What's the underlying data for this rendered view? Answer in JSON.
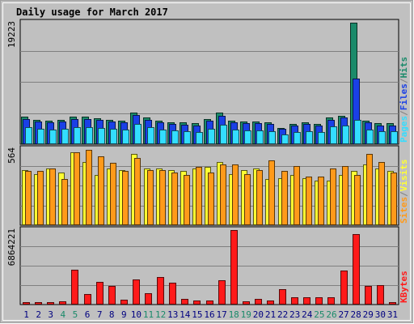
{
  "colors": {
    "frame_bg": "#c0c0c0",
    "plot_bg": "#c0c0c0",
    "title": "#0000cc",
    "gridline": "#808080",
    "hits": "#1a8a6a",
    "files": "#1a40e6",
    "pages": "#33ddff",
    "visits": "#ffff33",
    "sites": "#ff9a1a",
    "kbytes": "#ff1a1a",
    "weekend_label": "#1a8a6a",
    "weekday_label": "#000080"
  },
  "chart_data": {
    "type": "bar",
    "title": "Daily usage for March 2017",
    "days": [
      "1",
      "2",
      "3",
      "4",
      "5",
      "6",
      "7",
      "8",
      "9",
      "10",
      "11",
      "12",
      "13",
      "14",
      "15",
      "16",
      "17",
      "18",
      "19",
      "20",
      "21",
      "22",
      "23",
      "24",
      "25",
      "26",
      "27",
      "28",
      "29",
      "30",
      "31"
    ],
    "weekend_days": [
      "4",
      "5",
      "11",
      "12",
      "18",
      "19",
      "25",
      "26"
    ],
    "panels": [
      {
        "id": "hits-files-pages",
        "max_label": "19223",
        "ymax": 19223,
        "legend": [
          {
            "text": "Pages",
            "color_key": "pages"
          },
          {
            "text": "/",
            "color_key": "gridline"
          },
          {
            "text": "Files",
            "color_key": "files"
          },
          {
            "text": "/",
            "color_key": "gridline"
          },
          {
            "text": "Hits",
            "color_key": "hits"
          }
        ],
        "series": [
          {
            "name": "Hits",
            "color_key": "hits",
            "values": [
              4300,
              3900,
              3700,
              3900,
              4300,
              4300,
              4100,
              3900,
              3700,
              5000,
              4200,
              3700,
              3500,
              3400,
              3300,
              4000,
              5000,
              3700,
              3600,
              3600,
              3500,
              2600,
              3200,
              3500,
              3200,
              4200,
              4500,
              19223,
              3700,
              3300,
              3300
            ]
          },
          {
            "name": "Files",
            "color_key": "files",
            "values": [
              4000,
              3600,
              3400,
              3600,
              4000,
              4000,
              3800,
              3600,
              3400,
              4600,
              3900,
              3400,
              3200,
              3100,
              3000,
              3700,
              4500,
              3400,
              3300,
              3300,
              3200,
              2400,
              2900,
              3200,
              2900,
              3900,
              4200,
              10400,
              3400,
              3000,
              3000
            ]
          },
          {
            "name": "Pages",
            "color_key": "pages",
            "values": [
              2700,
              2400,
              2300,
              2400,
              2700,
              2700,
              2500,
              2400,
              2300,
              3200,
              2700,
              2300,
              2200,
              2000,
              1900,
              2400,
              3100,
              2300,
              2200,
              2200,
              2100,
              1500,
              1900,
              2100,
              1900,
              2800,
              3000,
              3800,
              2300,
              2000,
              2000
            ]
          }
        ]
      },
      {
        "id": "visits-sites",
        "max_label": "564",
        "ymax": 564,
        "legend": [
          {
            "text": "Sites",
            "color_key": "sites"
          },
          {
            "text": "/",
            "color_key": "gridline"
          },
          {
            "text": "Visits",
            "color_key": "visits"
          }
        ],
        "series": [
          {
            "name": "Visits",
            "color_key": "visits",
            "values": [
              410,
              380,
              420,
              390,
              540,
              470,
              370,
              420,
              410,
              530,
              420,
              420,
              410,
              400,
              420,
              430,
              470,
              380,
              410,
              420,
              340,
              350,
              370,
              350,
              330,
              330,
              370,
              400,
              450,
              420,
              400
            ]
          },
          {
            "name": "Sites",
            "color_key": "sites",
            "values": [
              400,
              400,
              420,
              340,
              540,
              560,
              510,
              460,
              400,
              500,
              410,
              410,
              390,
              370,
              430,
              390,
              450,
              450,
              380,
              410,
              480,
              400,
              440,
              360,
              360,
              420,
              440,
              370,
              530,
              470,
              390
            ]
          }
        ]
      },
      {
        "id": "kbytes",
        "max_label": "6864221",
        "ymax": 6864221,
        "legend": [
          {
            "text": "KBytes",
            "color_key": "kbytes"
          }
        ],
        "series": [
          {
            "name": "KBytes",
            "color_key": "kbytes",
            "values": [
              250000,
              250000,
              250000,
              300000,
              3200000,
              1000000,
              2100000,
              1750000,
              420000,
              2300000,
              1050000,
              2500000,
              2000000,
              550000,
              350000,
              350000,
              2250000,
              6864221,
              300000,
              550000,
              400000,
              1450000,
              700000,
              700000,
              700000,
              700000,
              3100000,
              6500000,
              1700000,
              1800000,
              260000
            ]
          }
        ]
      }
    ]
  }
}
